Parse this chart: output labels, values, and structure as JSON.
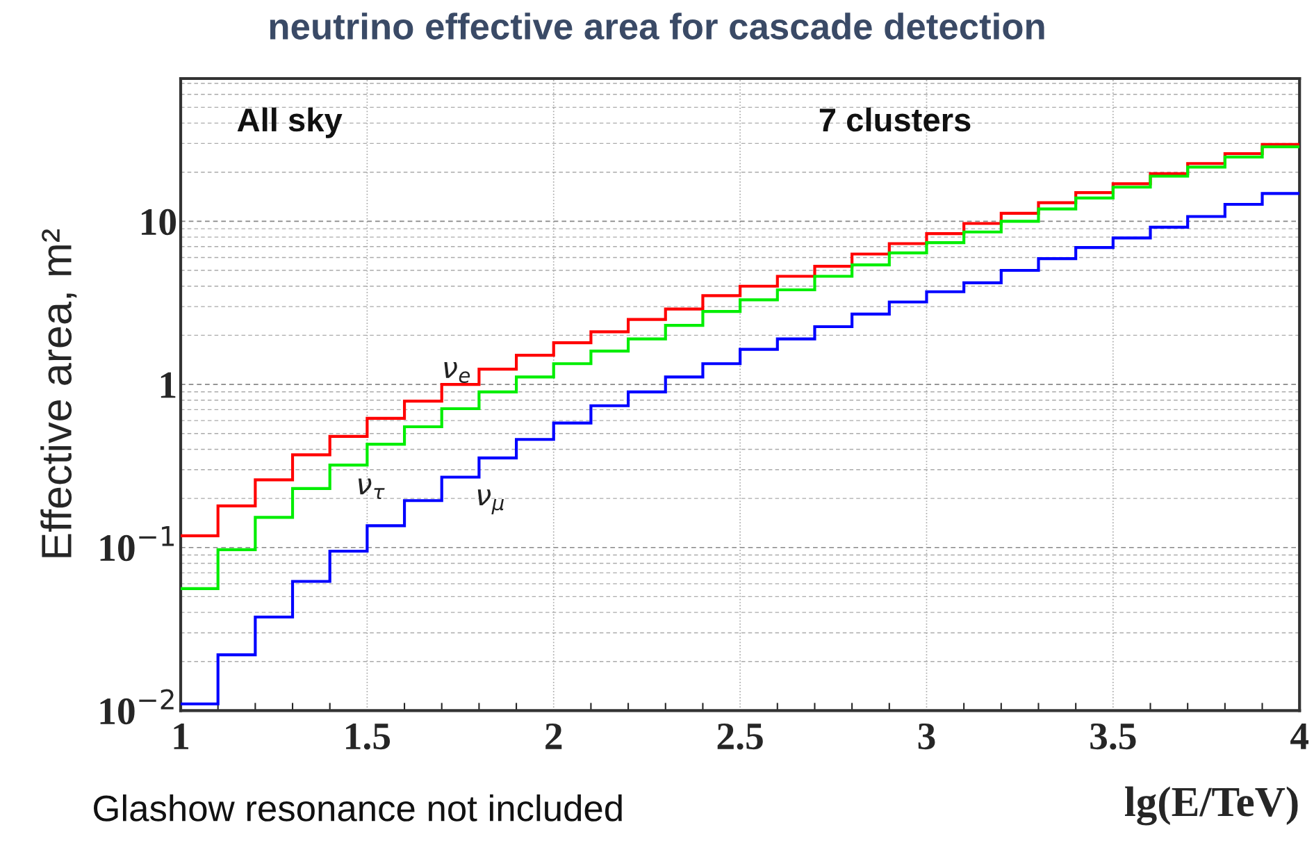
{
  "chart_data": {
    "type": "histogram",
    "title": "neutrino effective area for cascade detection",
    "xlabel": "lg(E/TeV)",
    "ylabel": "Effective area, m²",
    "bins": [
      1.0,
      1.1,
      1.2,
      1.3,
      1.4,
      1.5,
      1.6,
      1.7,
      1.8,
      1.9,
      2.0,
      2.1,
      2.2,
      2.3,
      2.4,
      2.5,
      2.6,
      2.7,
      2.8,
      2.9,
      3.0,
      3.1,
      3.2,
      3.3,
      3.4,
      3.5,
      3.6,
      3.7,
      3.8,
      3.9,
      4.0
    ],
    "series": [
      {
        "name": "ν$_{e}$",
        "color": "#ff0000",
        "values": [
          0.118,
          0.18,
          0.26,
          0.37,
          0.48,
          0.62,
          0.79,
          1.0,
          1.24,
          1.51,
          1.8,
          2.1,
          2.5,
          2.9,
          3.5,
          4.0,
          4.6,
          5.3,
          6.3,
          7.3,
          8.4,
          9.7,
          11.2,
          13,
          15,
          17,
          19.6,
          22.6,
          26,
          29.6
        ]
      },
      {
        "name": "ν$_{τ}$",
        "color": "#00ee00",
        "values": [
          0.056,
          0.097,
          0.153,
          0.23,
          0.32,
          0.43,
          0.55,
          0.71,
          0.9,
          1.11,
          1.34,
          1.6,
          1.9,
          2.3,
          2.8,
          3.3,
          3.8,
          4.6,
          5.4,
          6.4,
          7.4,
          8.6,
          10,
          11.9,
          13.9,
          16.2,
          18.9,
          21.5,
          24.8,
          28.6
        ]
      },
      {
        "name": "ν$_{μ}$",
        "color": "#0000ff",
        "values": [
          0.011,
          0.022,
          0.0375,
          0.062,
          0.095,
          0.136,
          0.194,
          0.27,
          0.354,
          0.46,
          0.58,
          0.74,
          0.9,
          1.11,
          1.34,
          1.64,
          1.9,
          2.26,
          2.7,
          3.2,
          3.7,
          4.2,
          5.0,
          5.9,
          6.9,
          7.9,
          9.2,
          10.7,
          12.7,
          14.8
        ]
      }
    ],
    "log": "y",
    "xlim": [
      1,
      4
    ],
    "ylim": [
      0.01,
      75
    ],
    "xticks": [
      1,
      {
        "value": 1.1,
        "label": null
      },
      {
        "value": 1.2,
        "label": null
      },
      {
        "value": 1.3,
        "label": null
      },
      {
        "value": 1.4,
        "label": null
      },
      1.5,
      {
        "value": 1.6,
        "label": null
      },
      {
        "value": 1.7,
        "label": null
      },
      {
        "value": 1.8,
        "label": null
      },
      {
        "value": 1.9,
        "label": null
      },
      2,
      {
        "value": 2.1,
        "label": null
      },
      {
        "value": 2.2,
        "label": null
      },
      {
        "value": 2.3,
        "label": null
      },
      {
        "value": 2.4,
        "label": null
      },
      2.5,
      {
        "value": 2.6,
        "label": null
      },
      {
        "value": 2.7,
        "label": null
      },
      {
        "value": 2.8,
        "label": null
      },
      {
        "value": 2.9,
        "label": null
      },
      3,
      {
        "value": 3.1,
        "label": null
      },
      {
        "value": 3.2,
        "label": null
      },
      {
        "value": 3.3,
        "label": null
      },
      {
        "value": 3.4,
        "label": null
      },
      3.5,
      {
        "value": 3.6,
        "label": null
      },
      {
        "value": 3.7,
        "label": null
      },
      {
        "value": 3.8,
        "label": null
      },
      {
        "value": 3.9,
        "label": null
      },
      4
    ],
    "yticks": [
      {
        "value": 0.01,
        "label": "10$^{−2}$"
      },
      {
        "value": 0.1,
        "label": "10$^{−1}$"
      },
      1,
      10
    ],
    "grid": true,
    "annotations": [
      "All sky",
      "7 clusters",
      "Glashow resonance not included"
    ]
  }
}
